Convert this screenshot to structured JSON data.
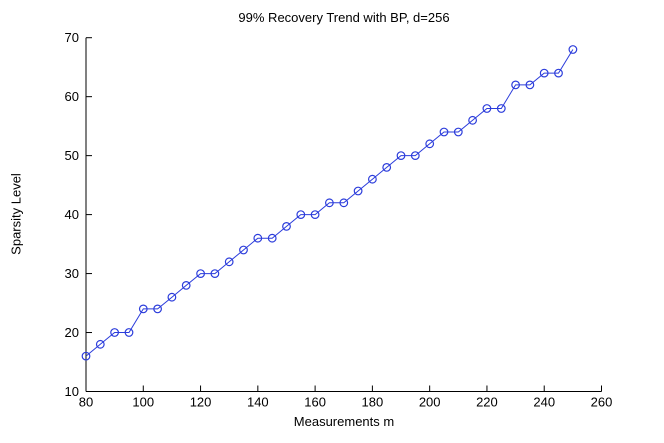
{
  "figure": {
    "background": "#ffffff",
    "axis_color": "#000000",
    "text_color": "#000000"
  },
  "chart_data": {
    "type": "line",
    "title": "99% Recovery Trend with BP, d=256",
    "xlabel": "Measurements m",
    "ylabel": "Sparsity Level",
    "x": [
      80,
      85,
      90,
      95,
      100,
      105,
      110,
      115,
      120,
      125,
      130,
      135,
      140,
      145,
      150,
      155,
      160,
      165,
      170,
      175,
      180,
      185,
      190,
      195,
      200,
      205,
      210,
      215,
      220,
      225,
      230,
      235,
      240,
      245,
      250
    ],
    "y": [
      16,
      18,
      20,
      20,
      24,
      24,
      26,
      28,
      30,
      30,
      32,
      34,
      36,
      36,
      38,
      40,
      40,
      42,
      42,
      44,
      46,
      48,
      50,
      50,
      52,
      54,
      54,
      56,
      58,
      58,
      62,
      62,
      64,
      64,
      68
    ],
    "xlim": [
      80,
      260
    ],
    "ylim": [
      10,
      70
    ],
    "xticks": [
      80,
      100,
      120,
      140,
      160,
      180,
      200,
      220,
      240,
      260
    ],
    "yticks": [
      10,
      20,
      30,
      40,
      50,
      60,
      70
    ],
    "line_color": "#2b3cdb",
    "marker": "circle",
    "marker_fill": "none",
    "grid": false,
    "legend": null,
    "box": false
  }
}
